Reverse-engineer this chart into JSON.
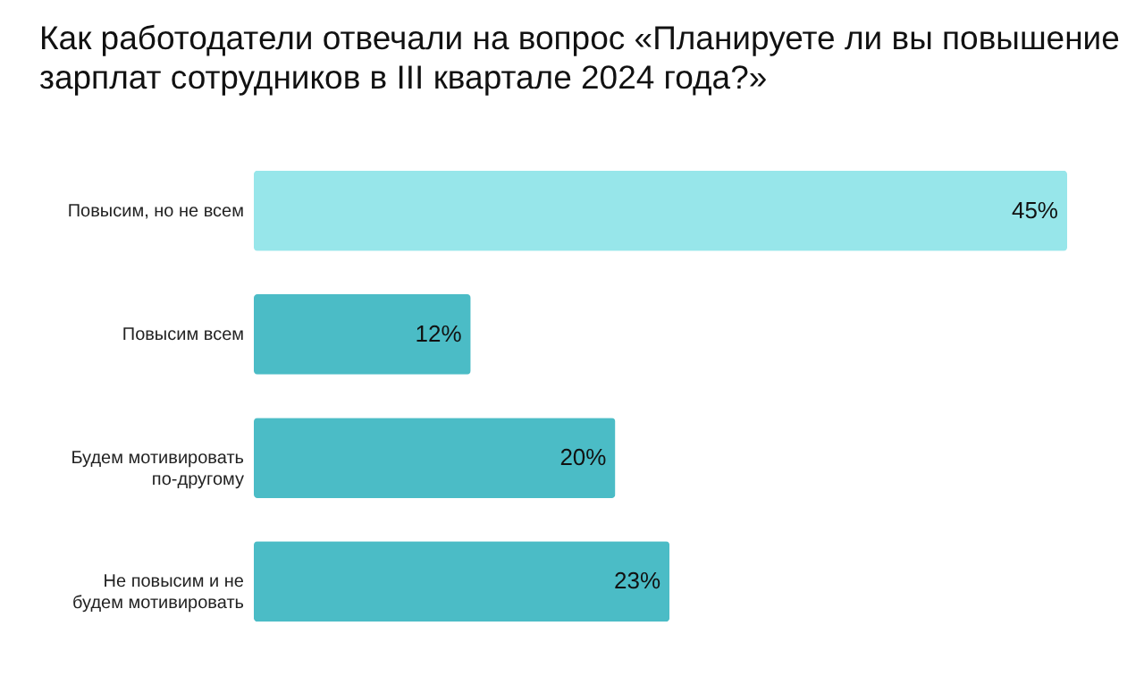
{
  "chart_data": {
    "type": "bar",
    "orientation": "horizontal",
    "title": [
      "Как работодатели отвечали на вопрос «Планируете ли вы повышение",
      "зарплат сотрудников в III квартале 2024 года?»"
    ],
    "categories": [
      "Повысим, но не всем",
      "Повысим всем",
      "Будем мотивировать по-другому",
      "Не повысим и не будем мотивировать"
    ],
    "values": [
      45,
      12,
      20,
      23
    ],
    "colors": [
      "#97e6ea",
      "#4bbcc6",
      "#4bbcc6",
      "#4bbcc6"
    ],
    "value_labels": [
      "45%",
      "12%",
      "20%",
      "23%"
    ]
  }
}
